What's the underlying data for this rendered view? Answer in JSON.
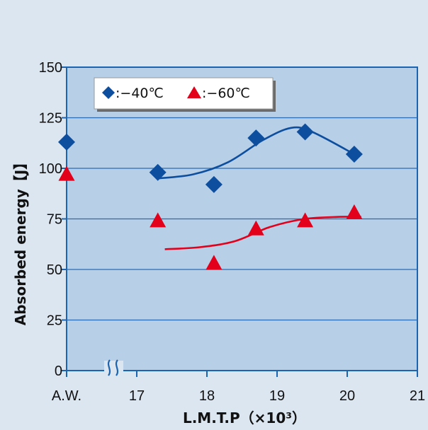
{
  "chart_data": {
    "type": "scatter",
    "xlabel": "L.M.T.P（×10³）",
    "ylabel": "Absorbed energy【J】",
    "xlim": [
      16.0,
      21.0
    ],
    "ylim": [
      0,
      150
    ],
    "y_ticks": [
      "0",
      "25",
      "50",
      "75",
      "100",
      "125",
      "150"
    ],
    "x_ticks": [
      {
        "label": "A.W.",
        "x": 16.0
      },
      {
        "label": "17",
        "x": 17.0
      },
      {
        "label": "18",
        "x": 18.0
      },
      {
        "label": "19",
        "x": 19.0
      },
      {
        "label": "20",
        "x": 20.0
      },
      {
        "label": "21",
        "x": 21.0
      }
    ],
    "axis_break": true,
    "grid": "horizontal",
    "legend": "top-left",
    "series": [
      {
        "name": ":−40℃",
        "marker": "diamond",
        "color": "#0d4f9e",
        "points": [
          {
            "x": 16.0,
            "label": "A.W.",
            "y": 113
          },
          {
            "x": 17.3,
            "y": 98
          },
          {
            "x": 18.1,
            "y": 92
          },
          {
            "x": 18.7,
            "y": 115
          },
          {
            "x": 19.4,
            "y": 118
          },
          {
            "x": 20.1,
            "y": 107
          }
        ],
        "trend": [
          {
            "x": 17.3,
            "y": 95
          },
          {
            "x": 17.8,
            "y": 97
          },
          {
            "x": 18.3,
            "y": 103
          },
          {
            "x": 18.8,
            "y": 114
          },
          {
            "x": 19.2,
            "y": 120
          },
          {
            "x": 19.5,
            "y": 118
          },
          {
            "x": 20.1,
            "y": 107
          }
        ]
      },
      {
        "name": ":−60℃",
        "marker": "triangle",
        "color": "#e3001b",
        "points": [
          {
            "x": 16.0,
            "label": "A.W.",
            "y": 97
          },
          {
            "x": 17.3,
            "y": 74
          },
          {
            "x": 18.1,
            "y": 53
          },
          {
            "x": 18.7,
            "y": 70
          },
          {
            "x": 19.4,
            "y": 74
          },
          {
            "x": 20.1,
            "y": 78
          }
        ],
        "trend": [
          {
            "x": 17.4,
            "y": 60
          },
          {
            "x": 17.9,
            "y": 61
          },
          {
            "x": 18.4,
            "y": 64
          },
          {
            "x": 18.9,
            "y": 71
          },
          {
            "x": 19.4,
            "y": 75
          },
          {
            "x": 19.9,
            "y": 76
          },
          {
            "x": 20.2,
            "y": 76
          }
        ]
      }
    ]
  },
  "colors": {
    "background": "#dce6f1",
    "plot_area": "#b8cfe8",
    "frame": "#1c64b0",
    "grid": "#2a6bb3"
  }
}
